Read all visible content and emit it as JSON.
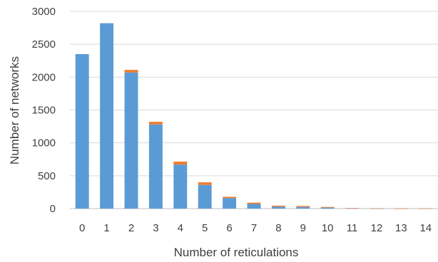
{
  "chart_data": {
    "type": "bar",
    "stacked": true,
    "categories": [
      "0",
      "1",
      "2",
      "3",
      "4",
      "5",
      "6",
      "7",
      "8",
      "9",
      "10",
      "11",
      "12",
      "13",
      "14"
    ],
    "series": [
      {
        "values": [
          2350,
          2820,
          2070,
          1280,
          670,
          360,
          160,
          70,
          30,
          25,
          15,
          5,
          3,
          2,
          1
        ]
      },
      {
        "values": [
          0,
          0,
          40,
          40,
          45,
          40,
          20,
          20,
          15,
          15,
          10,
          3,
          2,
          1,
          1
        ]
      }
    ],
    "colors": [
      "#5b9bd5",
      "#ed7d31"
    ],
    "xlabel": "Number of reticulations",
    "ylabel": "Number of networks",
    "ylim": [
      0,
      3000
    ],
    "yticks": [
      "0",
      "500",
      "1000",
      "1500",
      "2000",
      "2500",
      "3000"
    ],
    "grid": true,
    "legend": "none"
  }
}
